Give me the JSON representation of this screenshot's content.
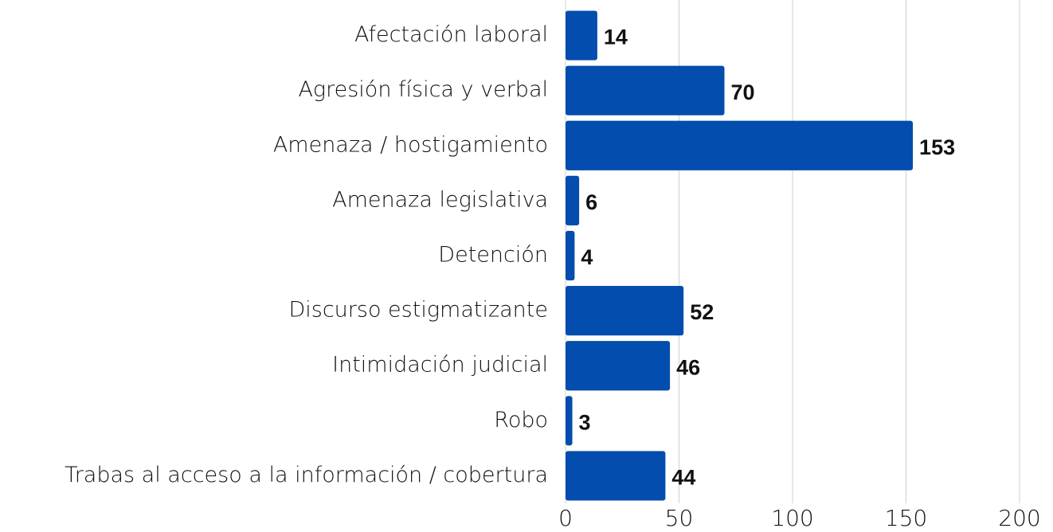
{
  "chart_data": {
    "type": "bar",
    "orientation": "horizontal",
    "categories": [
      "Afectación laboral",
      "Agresión física y verbal",
      "Amenaza / hostigamiento",
      "Amenaza legislativa",
      "Detención",
      "Discurso estigmatizante",
      "Intimidación judicial",
      "Robo",
      "Trabas al acceso a la información / cobertura"
    ],
    "values": [
      14,
      70,
      153,
      6,
      4,
      52,
      46,
      3,
      44
    ],
    "color": "#024dad",
    "xlim": [
      0,
      200
    ],
    "xticks": [
      0,
      50,
      100,
      150,
      200
    ],
    "grid": true
  }
}
